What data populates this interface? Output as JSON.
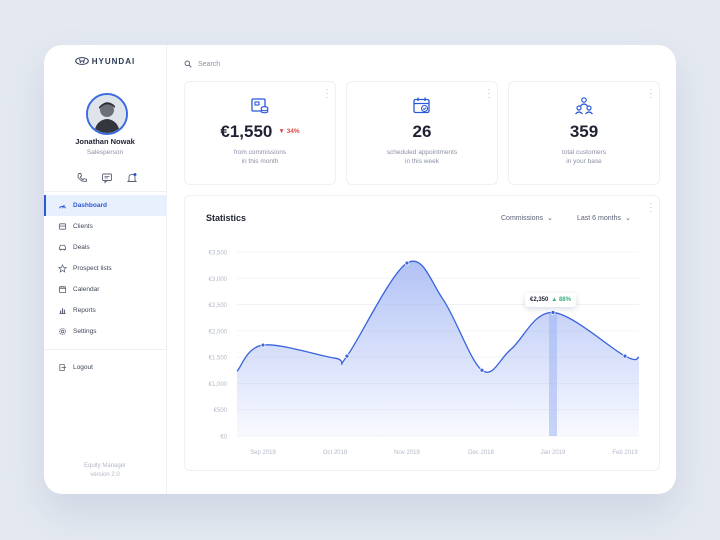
{
  "brand": {
    "logo_text": "HYUNDAI"
  },
  "user": {
    "name": "Jonathan Nowak",
    "role": "Salesperson"
  },
  "sidebar": {
    "items": [
      {
        "label": "Dashboard",
        "icon": "gauge-icon"
      },
      {
        "label": "Clients",
        "icon": "clients-icon"
      },
      {
        "label": "Deals",
        "icon": "car-icon"
      },
      {
        "label": "Prospect lists",
        "icon": "star-icon"
      },
      {
        "label": "Calendar",
        "icon": "calendar-icon"
      },
      {
        "label": "Reports",
        "icon": "bar-chart-icon"
      },
      {
        "label": "Settings",
        "icon": "gear-icon"
      }
    ],
    "active_index": 0,
    "logout_label": "Logout",
    "footer_line1": "Equity Manager",
    "footer_line2": "version 2.0"
  },
  "search": {
    "placeholder": "Search"
  },
  "stats": [
    {
      "value": "€1,550",
      "delta": "▼ 34%",
      "caption_line1": "from commissions",
      "caption_line2": "in this month",
      "icon": "commission-icon"
    },
    {
      "value": "26",
      "caption_line1": "scheduled appointments",
      "caption_line2": "in this week",
      "icon": "calendar-check-icon"
    },
    {
      "value": "359",
      "caption_line1": "total customers",
      "caption_line2": "in your base",
      "icon": "customers-icon"
    }
  ],
  "statistics": {
    "title": "Statistics",
    "metric_filter": "Commissions",
    "period_filter": "Last 6 months",
    "tooltip_value": "€2,350",
    "tooltip_change": "▲ 88%"
  },
  "colors": {
    "accent": "#2b59d6",
    "line": "#3a63dc",
    "area_top": "#aebff5",
    "negative": "#e04545",
    "positive": "#36b37e"
  },
  "chart_data": {
    "type": "area",
    "title": "Statistics",
    "xlabel": "",
    "ylabel": "",
    "y_ticks": [
      "€3,500",
      "€3,000",
      "€2,500",
      "€2,000",
      "€1,500",
      "€1,000",
      "€500",
      "€0"
    ],
    "y_tick_values": [
      3500,
      3000,
      2500,
      2000,
      1500,
      1000,
      500,
      0
    ],
    "ylim": [
      0,
      3500
    ],
    "x_labels": [
      "Sep 2018",
      "Oct 2018",
      "Nov 2018",
      "Dec 2018",
      "Jan 2019",
      "Feb 2019"
    ],
    "grid": true,
    "highlight_index": 8,
    "points": [
      {
        "x": "Aug 2018",
        "y": 1230
      },
      {
        "x": "Sep 2018",
        "y": 1730
      },
      {
        "x": "Oct 2018",
        "y": 1480
      },
      {
        "x": "Oct 2018 (late)",
        "y": 1520
      },
      {
        "x": "Nov 2018",
        "y": 3290
      },
      {
        "x": "Nov 2018 (late)",
        "y": 2600
      },
      {
        "x": "Dec 2018",
        "y": 1250
      },
      {
        "x": "Dec 2018 (late)",
        "y": 1650
      },
      {
        "x": "Jan 2019",
        "y": 2350
      },
      {
        "x": "Feb 2019",
        "y": 1520
      },
      {
        "x": "Feb 2019 (end)",
        "y": 1500
      }
    ]
  }
}
